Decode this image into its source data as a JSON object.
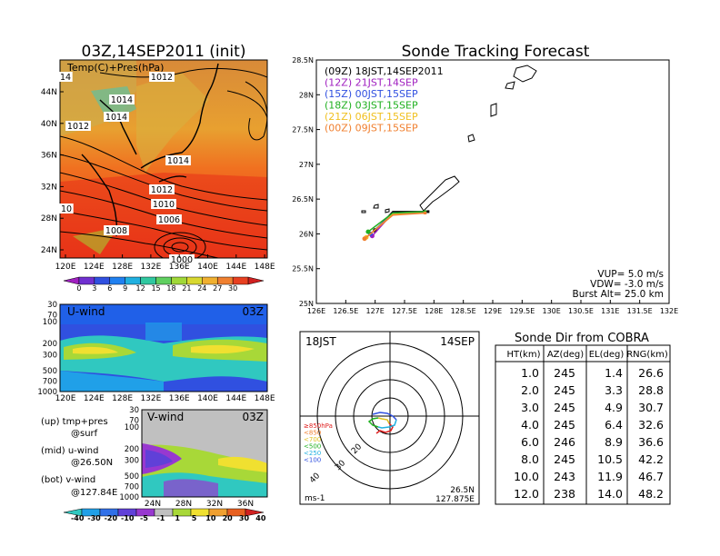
{
  "map_panel": {
    "title": "03Z,14SEP2011 (init)",
    "label": "Temp(C)+Pres(hPa)",
    "lat_ticks": [
      "44N",
      "40N",
      "36N",
      "32N",
      "28N",
      "24N"
    ],
    "lon_ticks": [
      "120E",
      "124E",
      "128E",
      "132E",
      "136E",
      "140E",
      "144E",
      "148E"
    ],
    "isobars": [
      "1012",
      "1014",
      "1014",
      "1012",
      "1014",
      "1012",
      "1010",
      "1008",
      "1006",
      "1000",
      "10",
      "14"
    ],
    "colorbar": {
      "ticks": [
        "0",
        "3",
        "6",
        "9",
        "12",
        "15",
        "18",
        "21",
        "24",
        "27",
        "30"
      ],
      "colors": [
        "#a020c0",
        "#7030d0",
        "#3050e0",
        "#2080f0",
        "#20b0e0",
        "#30c8a0",
        "#60d060",
        "#a0d838",
        "#d8d830",
        "#f0b030",
        "#f08030",
        "#e84020",
        "#d02020"
      ]
    }
  },
  "u_panel": {
    "title": "U-wind",
    "time": "03Z",
    "y_ticks": [
      "30",
      "70",
      "100",
      "200",
      "300",
      "500",
      "700",
      "1000"
    ],
    "x_ticks": [
      "120E",
      "124E",
      "128E",
      "132E",
      "136E",
      "140E",
      "144E",
      "148E"
    ]
  },
  "v_panel": {
    "title": "V-wind",
    "time": "03Z",
    "y_ticks": [
      "30",
      "70",
      "100",
      "200",
      "300",
      "500",
      "700",
      "1000"
    ],
    "x_ticks": [
      "24N",
      "28N",
      "32N",
      "36N"
    ]
  },
  "legend_notes": [
    "(up) tmp+pres",
    "@surf",
    "(mid) u-wind",
    "@26.50N",
    "(bot) v-wind",
    "@127.84E"
  ],
  "wind_colorbar": {
    "ticks": [
      "-40",
      "-30",
      "-20",
      "-10",
      "-5",
      "-1",
      "1",
      "5",
      "10",
      "20",
      "30",
      "40"
    ],
    "colors": [
      "#30c8c0",
      "#20a0e8",
      "#3070e8",
      "#6040d8",
      "#9838d0",
      "#c0c0c0",
      "#a8d838",
      "#f0e030",
      "#f0a030",
      "#e86020",
      "#d02020"
    ]
  },
  "tracking": {
    "title": "Sonde Tracking Forecast",
    "launches": [
      {
        "label": "(09Z)  18JST,14SEP2011",
        "color": "#000000"
      },
      {
        "label": "(12Z)  21JST,14SEP",
        "color": "#a020c0"
      },
      {
        "label": "(15Z)  00JST,15SEP",
        "color": "#3050e0"
      },
      {
        "label": "(18Z)  03JST,15SEP",
        "color": "#20b020"
      },
      {
        "label": "(21Z)  06JST,15SEP",
        "color": "#f0c020"
      },
      {
        "label": "(00Z)  09JST,15SEP",
        "color": "#f08030"
      }
    ],
    "lat_ticks": [
      "28.5N",
      "28N",
      "27.5N",
      "27N",
      "26.5N",
      "26N",
      "25.5N",
      "25N"
    ],
    "lon_ticks": [
      "126E",
      "126.5E",
      "127E",
      "127.5E",
      "128E",
      "128.5E",
      "129E",
      "129.5E",
      "130E",
      "130.5E",
      "131E",
      "131.5E",
      "132E"
    ],
    "params": [
      "VUP=  5.0  m/s",
      "VDW= -3.0  m/s",
      "Burst Alt=  25.0  km"
    ]
  },
  "hodograph": {
    "time": "18JST",
    "date": "14SEP",
    "levels": [
      "≥850hPa",
      "<850",
      "<700",
      "<500",
      "<250",
      "<100"
    ],
    "level_colors": [
      "#e02020",
      "#f08030",
      "#e0c020",
      "#20b020",
      "#20b0e0",
      "#3050e0"
    ],
    "ring_labels": [
      "20",
      "30",
      "40"
    ],
    "unit": "ms-1",
    "lat": "26.5N",
    "lon": "127.875E"
  },
  "sonde_table": {
    "title": "Sonde Dir from COBRA",
    "headers": [
      "HT(km)",
      "AZ(deg)",
      "EL(deg)",
      "RNG(km)"
    ],
    "rows": [
      [
        "1.0",
        "245",
        "1.4",
        "26.6"
      ],
      [
        "2.0",
        "245",
        "3.3",
        "28.8"
      ],
      [
        "3.0",
        "245",
        "4.9",
        "30.7"
      ],
      [
        "4.0",
        "245",
        "6.4",
        "32.6"
      ],
      [
        "6.0",
        "246",
        "8.9",
        "36.6"
      ],
      [
        "8.0",
        "245",
        "10.5",
        "42.2"
      ],
      [
        "10.0",
        "243",
        "11.9",
        "46.7"
      ],
      [
        "12.0",
        "238",
        "14.0",
        "48.2"
      ]
    ]
  },
  "chart_data": [
    {
      "type": "heatmap",
      "title": "03Z,14SEP2011 (init)",
      "label": "Temp(C)+Pres(hPa)",
      "x_ticks": [
        "120E",
        "124E",
        "128E",
        "132E",
        "136E",
        "140E",
        "144E",
        "148E"
      ],
      "y_ticks": [
        "24N",
        "28N",
        "32N",
        "36N",
        "40N",
        "44N"
      ],
      "colorbar_ticks": [
        0,
        3,
        6,
        9,
        12,
        15,
        18,
        21,
        24,
        27,
        30
      ],
      "isobar_labels": [
        1012,
        1014,
        1014,
        1012,
        1014,
        1012,
        1010,
        1008,
        1006,
        1000
      ]
    },
    {
      "type": "heatmap",
      "title": "U-wind",
      "time": "03Z",
      "y_ticks": [
        30,
        70,
        100,
        200,
        300,
        500,
        700,
        1000
      ],
      "x_ticks": [
        "120E",
        "124E",
        "128E",
        "132E",
        "136E",
        "140E",
        "144E",
        "148E"
      ]
    },
    {
      "type": "heatmap",
      "title": "V-wind",
      "time": "03Z",
      "y_ticks": [
        30,
        70,
        100,
        200,
        300,
        500,
        700,
        1000
      ],
      "x_ticks": [
        "24N",
        "28N",
        "32N",
        "36N"
      ],
      "colorbar_ticks": [
        -40,
        -30,
        -20,
        -10,
        -5,
        -1,
        1,
        5,
        10,
        20,
        30,
        40
      ]
    },
    {
      "type": "line",
      "title": "Sonde Tracking Forecast",
      "xlim": [
        126,
        132
      ],
      "ylim": [
        25,
        28.5
      ],
      "series": [
        {
          "name": "(09Z)  18JST,14SEP2011",
          "x": [
            127.9,
            127.3,
            127.0
          ],
          "y": [
            26.32,
            26.32,
            26.05
          ]
        },
        {
          "name": "(12Z)  21JST,14SEP",
          "x": [
            127.85,
            127.3,
            126.95
          ],
          "y": [
            26.3,
            26.3,
            25.97
          ]
        },
        {
          "name": "(15Z)  00JST,15SEP",
          "x": [
            127.85,
            127.3,
            126.92
          ],
          "y": [
            26.31,
            26.3,
            26.0
          ]
        },
        {
          "name": "(18Z)  03JST,15SEP",
          "x": [
            127.85,
            127.3,
            126.88
          ],
          "y": [
            26.32,
            26.3,
            26.03
          ]
        },
        {
          "name": "(21Z)  06JST,15SEP",
          "x": [
            127.85,
            127.3,
            126.85
          ],
          "y": [
            26.3,
            26.28,
            25.95
          ]
        },
        {
          "name": "(00Z)  09JST,15SEP",
          "x": [
            127.85,
            127.3,
            126.82
          ],
          "y": [
            26.3,
            26.27,
            25.93
          ]
        }
      ]
    },
    {
      "type": "table",
      "title": "Sonde Dir from COBRA",
      "headers": [
        "HT(km)",
        "AZ(deg)",
        "EL(deg)",
        "RNG(km)"
      ],
      "rows": [
        [
          1.0,
          245,
          1.4,
          26.6
        ],
        [
          2.0,
          245,
          3.3,
          28.8
        ],
        [
          3.0,
          245,
          4.9,
          30.7
        ],
        [
          4.0,
          245,
          6.4,
          32.6
        ],
        [
          6.0,
          246,
          8.9,
          36.6
        ],
        [
          8.0,
          245,
          10.5,
          42.2
        ],
        [
          10.0,
          243,
          11.9,
          46.7
        ],
        [
          12.0,
          238,
          14.0,
          48.2
        ]
      ]
    }
  ]
}
